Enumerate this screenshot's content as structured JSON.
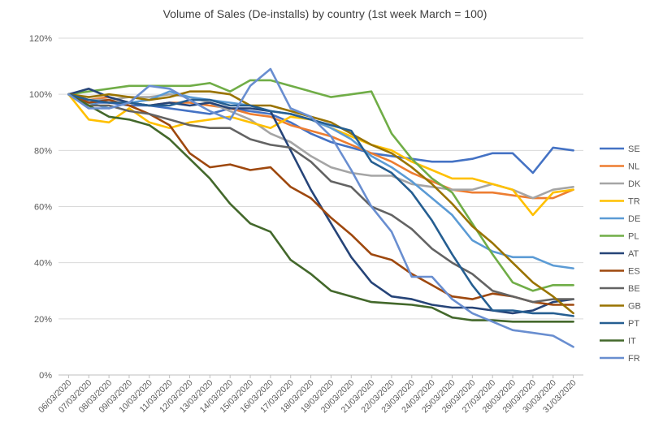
{
  "chart_data": {
    "type": "line",
    "title": "Volume of Sales (De-installs) by country (1st week March = 100)",
    "xlabel": "",
    "ylabel": "",
    "ylim": [
      0,
      120
    ],
    "y_ticks": [
      0,
      20,
      40,
      60,
      80,
      100,
      120
    ],
    "y_tick_labels": [
      "0%",
      "20%",
      "40%",
      "60%",
      "80%",
      "100%",
      "120%"
    ],
    "grid": "horizontal",
    "legend_position": "right",
    "x": [
      "06/03/2020",
      "07/03/2020",
      "08/03/2020",
      "09/03/2020",
      "10/03/2020",
      "11/03/2020",
      "12/03/2020",
      "13/03/2020",
      "14/03/2020",
      "15/03/2020",
      "16/03/2020",
      "17/03/2020",
      "18/03/2020",
      "19/03/2020",
      "20/03/2020",
      "21/03/2020",
      "22/03/2020",
      "23/03/2020",
      "24/03/2020",
      "25/03/2020",
      "26/03/2020",
      "27/03/2020",
      "28/03/2020",
      "29/03/2020",
      "30/03/2020",
      "31/03/2020"
    ],
    "series": [
      {
        "name": "SE",
        "color": "#4472C4",
        "values": [
          100,
          97,
          97,
          96,
          96,
          95,
          94,
          93,
          95,
          94,
          93,
          90,
          86,
          83,
          81,
          79,
          78,
          77,
          76,
          76,
          77,
          79,
          79,
          72,
          81,
          80
        ]
      },
      {
        "name": "NL",
        "color": "#ED7D31",
        "values": [
          100,
          98,
          99,
          97,
          96,
          97,
          97,
          96,
          95,
          93,
          92,
          89,
          87,
          85,
          82,
          79,
          76,
          72,
          69,
          66,
          65,
          65,
          64,
          63,
          63,
          66
        ]
      },
      {
        "name": "DK",
        "color": "#A5A5A5",
        "values": [
          100,
          98,
          98,
          99,
          99,
          100,
          99,
          97,
          94,
          91,
          86,
          83,
          78,
          74,
          72,
          71,
          71,
          68,
          67,
          66,
          66,
          68,
          66,
          63,
          66,
          67
        ]
      },
      {
        "name": "TR",
        "color": "#FFC000",
        "values": [
          100,
          91,
          90,
          95,
          90,
          88,
          90,
          91,
          92,
          90,
          88,
          92,
          91,
          88,
          85,
          82,
          80,
          76,
          73,
          70,
          70,
          68,
          66,
          57,
          65,
          66
        ]
      },
      {
        "name": "DE",
        "color": "#5B9BD5",
        "values": [
          100,
          97,
          95,
          97,
          98,
          101,
          99,
          98,
          97,
          96,
          94,
          93,
          91,
          88,
          84,
          78,
          74,
          69,
          63,
          57,
          48,
          44,
          42,
          42,
          39,
          38
        ]
      },
      {
        "name": "PL",
        "color": "#70AD47",
        "values": [
          100,
          101,
          102,
          103,
          103,
          103,
          103,
          104,
          101,
          105,
          105,
          103,
          101,
          99,
          100,
          101,
          86,
          77,
          70,
          65,
          54,
          43,
          33,
          30,
          32,
          32
        ]
      },
      {
        "name": "AT",
        "color": "#264478",
        "values": [
          100,
          102,
          99,
          97,
          96,
          97,
          96,
          97,
          95,
          95,
          94,
          80,
          66,
          54,
          42,
          33,
          28,
          27,
          25,
          24,
          24,
          23,
          22,
          23,
          26,
          27
        ]
      },
      {
        "name": "ES",
        "color": "#9E480E",
        "values": [
          100,
          97,
          98,
          96,
          93,
          89,
          79,
          74,
          75,
          73,
          74,
          67,
          63,
          56,
          50,
          43,
          41,
          36,
          32,
          28,
          27,
          29,
          28,
          26,
          25,
          25
        ]
      },
      {
        "name": "BE",
        "color": "#636363",
        "values": [
          100,
          96,
          96,
          94,
          93,
          91,
          89,
          88,
          88,
          84,
          82,
          81,
          76,
          69,
          67,
          60,
          57,
          52,
          45,
          40,
          36,
          30,
          28,
          26,
          27,
          27
        ]
      },
      {
        "name": "GB",
        "color": "#997300",
        "values": [
          100,
          99,
          100,
          99,
          98,
          99,
          101,
          101,
          100,
          96,
          96,
          94,
          92,
          90,
          86,
          82,
          79,
          74,
          68,
          61,
          53,
          47,
          40,
          33,
          28,
          22
        ]
      },
      {
        "name": "PT",
        "color": "#255E91",
        "values": [
          100,
          98,
          97,
          97,
          96,
          96,
          98,
          98,
          96,
          96,
          94,
          93,
          91,
          89,
          87,
          76,
          72,
          65,
          55,
          43,
          32,
          23,
          23,
          22,
          22,
          21
        ]
      },
      {
        "name": "IT",
        "color": "#43682B",
        "values": [
          100,
          96,
          92,
          91,
          89,
          84,
          77,
          70,
          61,
          54,
          51,
          41,
          36,
          30,
          28,
          26,
          25.5,
          25,
          24,
          20.5,
          19.5,
          19.5,
          19,
          19,
          19,
          19
        ]
      },
      {
        "name": "FR",
        "color": "#698ED0",
        "values": [
          100,
          95,
          95,
          97,
          103,
          102,
          98,
          94,
          91,
          103,
          109,
          95,
          92,
          85,
          73,
          60,
          51,
          35,
          35,
          27,
          22,
          19,
          16,
          15,
          14,
          10
        ]
      }
    ]
  }
}
